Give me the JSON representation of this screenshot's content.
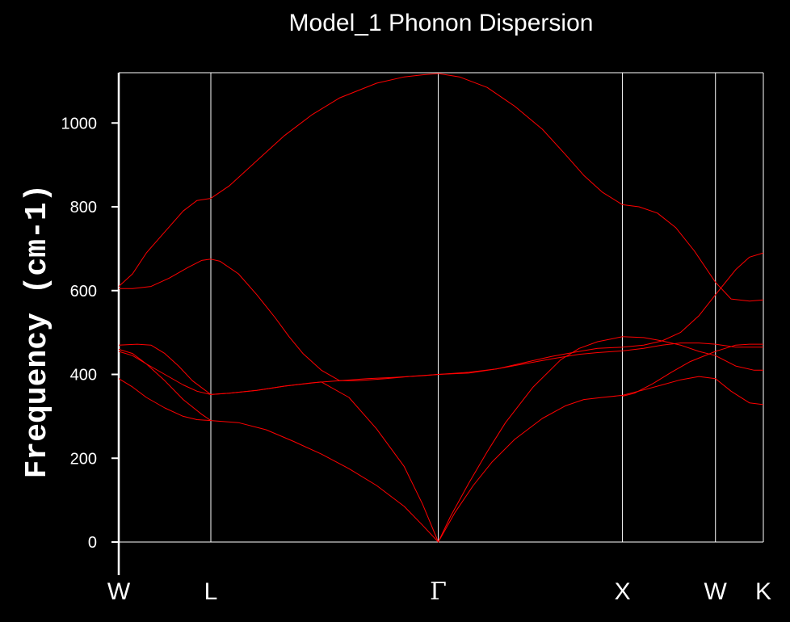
{
  "chart_data": {
    "type": "line",
    "title": "Model_1 Phonon Dispersion",
    "xlabel": "",
    "ylabel": "Frequency (cm-1)",
    "ylim": [
      0,
      1120
    ],
    "yticks": [
      0,
      200,
      400,
      600,
      800,
      1000
    ],
    "xlim": [
      0,
      7.0
    ],
    "x_ticks": [
      {
        "label": "W",
        "x": 0.0
      },
      {
        "label": "L",
        "x": 1.0
      },
      {
        "label": "Γ",
        "x": 3.47
      },
      {
        "label": "X",
        "x": 5.47
      },
      {
        "label": "W",
        "x": 6.48
      },
      {
        "label": "K",
        "x": 7.0
      }
    ],
    "line_color": "#ff0000",
    "grid": false,
    "legend": "none",
    "series": [
      {
        "x": [
          0.0,
          0.15,
          0.3,
          0.5,
          0.7,
          0.85,
          1.0,
          1.2,
          1.5,
          1.8,
          2.1,
          2.4,
          2.8,
          3.1,
          3.3,
          3.47,
          3.7,
          4.0,
          4.3,
          4.6,
          4.85,
          5.05,
          5.25,
          5.47,
          5.65,
          5.85,
          6.05,
          6.25,
          6.48,
          6.65,
          6.85,
          7.0
        ],
        "y": [
          610,
          640,
          690,
          740,
          790,
          815,
          820,
          850,
          910,
          970,
          1020,
          1060,
          1095,
          1110,
          1115,
          1118,
          1110,
          1085,
          1040,
          985,
          925,
          875,
          835,
          805,
          800,
          785,
          750,
          695,
          620,
          580,
          575,
          578
        ]
      },
      {
        "x": [
          0.0,
          0.15,
          0.35,
          0.55,
          0.75,
          0.9,
          1.0,
          1.1,
          1.3,
          1.5,
          1.7,
          1.85,
          2.0,
          2.2,
          2.4,
          2.6,
          2.9,
          3.2,
          3.47,
          3.8,
          4.1,
          4.4,
          4.7,
          5.0,
          5.2,
          5.47,
          5.7,
          5.9,
          6.1,
          6.3,
          6.48,
          6.7,
          6.85,
          7.0
        ],
        "y": [
          605,
          605,
          610,
          630,
          655,
          672,
          675,
          670,
          640,
          590,
          535,
          490,
          450,
          410,
          385,
          385,
          390,
          396,
          400,
          403,
          413,
          428,
          443,
          455,
          462,
          465,
          470,
          480,
          500,
          540,
          590,
          650,
          680,
          690
        ]
      },
      {
        "x": [
          0.0,
          0.2,
          0.35,
          0.5,
          0.65,
          0.8,
          1.0,
          1.2,
          1.5,
          1.8,
          2.1,
          2.4,
          2.7,
          3.0,
          3.3,
          3.47,
          3.8,
          4.1,
          4.4,
          4.7,
          5.0,
          5.2,
          5.47,
          5.7,
          5.9,
          6.1,
          6.3,
          6.48,
          6.7,
          7.0
        ],
        "y": [
          470,
          472,
          470,
          450,
          420,
          385,
          352,
          355,
          362,
          372,
          380,
          385,
          390,
          393,
          397,
          400,
          405,
          413,
          425,
          437,
          448,
          452,
          456,
          462,
          470,
          475,
          475,
          472,
          465,
          465
        ]
      },
      {
        "x": [
          0.0,
          0.15,
          0.3,
          0.5,
          0.7,
          0.85,
          1.0,
          1.2,
          1.5,
          1.8,
          2.2,
          2.5,
          2.8,
          3.1,
          3.3,
          3.47,
          3.6,
          3.8,
          4.0,
          4.2,
          4.5,
          4.8,
          5.0,
          5.2,
          5.47,
          5.7,
          5.9,
          6.1,
          6.3,
          6.48,
          6.7,
          6.9,
          7.0
        ],
        "y": [
          455,
          445,
          425,
          400,
          375,
          360,
          352,
          355,
          362,
          372,
          382,
          345,
          270,
          180,
          90,
          0,
          60,
          140,
          215,
          285,
          370,
          435,
          462,
          478,
          490,
          488,
          480,
          470,
          455,
          445,
          420,
          410,
          410
        ]
      },
      {
        "x": [
          0.0,
          0.15,
          0.3,
          0.5,
          0.7,
          0.9,
          1.0,
          1.3,
          1.6,
          1.9,
          2.2,
          2.5,
          2.8,
          3.1,
          3.3,
          3.47
        ],
        "y": [
          460,
          450,
          425,
          385,
          340,
          305,
          290,
          285,
          268,
          240,
          210,
          175,
          135,
          85,
          40,
          0
        ]
      },
      {
        "x": [
          3.47,
          3.65,
          3.85,
          4.05,
          4.3,
          4.6,
          4.85,
          5.05,
          5.25,
          5.47,
          5.7,
          5.9,
          6.1,
          6.3,
          6.48,
          6.65,
          6.85,
          7.0
        ],
        "y": [
          0,
          70,
          135,
          190,
          245,
          295,
          325,
          340,
          345,
          350,
          363,
          375,
          387,
          395,
          390,
          360,
          332,
          328
        ]
      },
      {
        "x": [
          0.0,
          0.15,
          0.3,
          0.5,
          0.7,
          0.85,
          1.0
        ],
        "y": [
          390,
          370,
          345,
          320,
          300,
          292,
          290
        ]
      },
      {
        "x": [
          5.47,
          5.6,
          5.8,
          6.0,
          6.2,
          6.48,
          6.7,
          6.85,
          7.0
        ],
        "y": [
          348,
          355,
          378,
          405,
          430,
          455,
          470,
          472,
          472
        ]
      }
    ]
  }
}
